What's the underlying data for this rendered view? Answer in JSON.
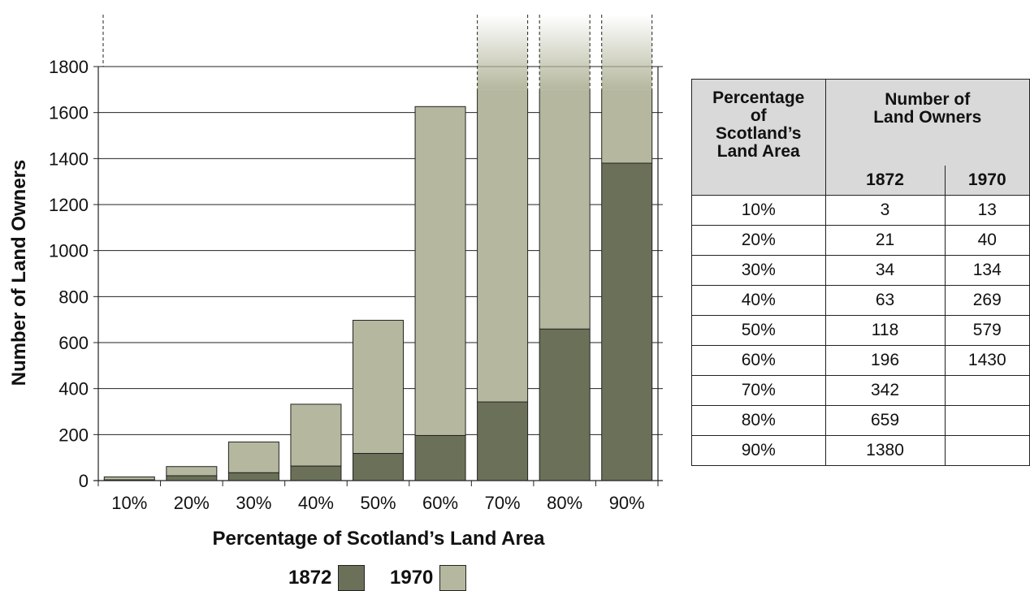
{
  "chart_data": {
    "type": "bar",
    "stacked": true,
    "xlabel": "Percentage of Scotland’s Land Area",
    "ylabel": "Number of Land Owners",
    "categories": [
      "10%",
      "20%",
      "30%",
      "40%",
      "50%",
      "60%",
      "70%",
      "80%",
      "90%"
    ],
    "y_ticks": [
      "0",
      "200",
      "400",
      "600",
      "800",
      "1000",
      "1200",
      "1400",
      "1600",
      "1800"
    ],
    "ylim": [
      0,
      1800
    ],
    "grid": true,
    "legend_position": "bottom",
    "series": [
      {
        "name": "1872",
        "color": "#6b7059",
        "values": [
          3,
          21,
          34,
          63,
          118,
          196,
          342,
          659,
          1380
        ]
      },
      {
        "name": "1970",
        "color": "#b5b89e",
        "values": [
          13,
          40,
          134,
          269,
          579,
          1430,
          null,
          null,
          null
        ]
      }
    ],
    "note": "Bars for 70%, 80% and 90% extend beyond the top of the axis (values off scale)."
  },
  "table": {
    "header_col1": [
      "Percentage",
      "of",
      "Scotland’s",
      "Land Area"
    ],
    "header_group": [
      "Number of",
      "Land Owners"
    ],
    "header_1872": "1872",
    "header_1970": "1970",
    "rows": [
      [
        "10%",
        "3",
        "13"
      ],
      [
        "20%",
        "21",
        "40"
      ],
      [
        "30%",
        "34",
        "134"
      ],
      [
        "40%",
        "63",
        "269"
      ],
      [
        "50%",
        "118",
        "579"
      ],
      [
        "60%",
        "196",
        "1430"
      ],
      [
        "70%",
        "342",
        ""
      ],
      [
        "80%",
        "659",
        ""
      ],
      [
        "90%",
        "1380",
        ""
      ]
    ]
  },
  "legend": {
    "item_1872": "1872",
    "item_1970": "1970",
    "color_1872": "#6b7059",
    "color_1970": "#b5b89e"
  }
}
